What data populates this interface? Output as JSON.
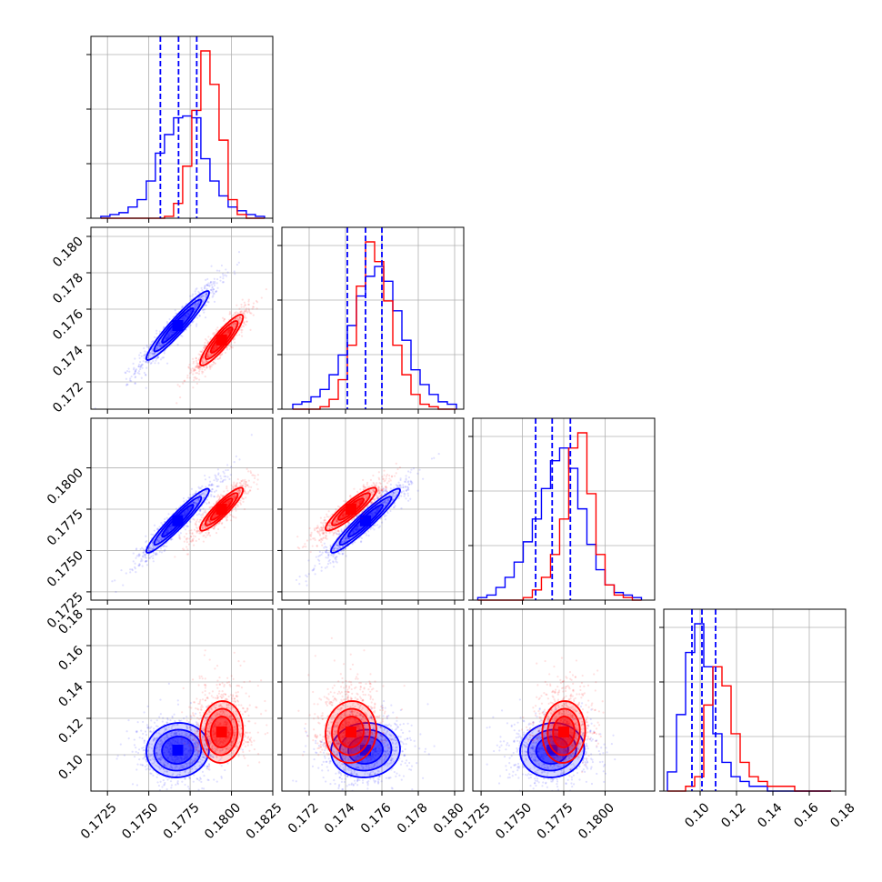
{
  "colors": {
    "blue": "#0000ff",
    "red": "#ff0000",
    "grid": "#b0b0b0",
    "axis": "#000000"
  },
  "chart_data": {
    "type": "corner",
    "grid": true,
    "dims": [
      {
        "range": [
          0.1715,
          0.1825
        ],
        "ticks": [
          0.1725,
          0.175,
          0.1775,
          0.18,
          0.1825
        ],
        "tick_labels": [
          "0.1725",
          "0.1750",
          "0.1775",
          "0.1800",
          "0.1825"
        ]
      },
      {
        "range": [
          0.1705,
          0.1805
        ],
        "ticks": [
          0.172,
          0.174,
          0.176,
          0.178,
          0.18
        ],
        "tick_labels": [
          "0.172",
          "0.174",
          "0.176",
          "0.178",
          "0.180"
        ]
      },
      {
        "range": [
          0.172,
          0.183
        ],
        "ticks": [
          0.1725,
          0.175,
          0.1775,
          0.18
        ],
        "tick_labels": [
          "0.1725",
          "0.1750",
          "0.1775",
          "0.1800"
        ]
      },
      {
        "range": [
          0.08,
          0.18
        ],
        "ticks": [
          0.1,
          0.12,
          0.14,
          0.16,
          0.18
        ],
        "tick_labels": [
          "0.10",
          "0.12",
          "0.14",
          "0.16",
          "0.18"
        ]
      }
    ],
    "quantiles": [
      [
        0.1757,
        0.1768,
        0.1779
      ],
      [
        0.1741,
        0.1751,
        0.176
      ],
      [
        0.1758,
        0.1768,
        0.1779
      ],
      [
        0.0955,
        0.101,
        0.1085
      ]
    ],
    "series": [
      {
        "color": "blue",
        "hists": [
          [
            0.1721,
            [
              1,
              2,
              3,
              6,
              10,
              20,
              35,
              45,
              54,
              55,
              54,
              32,
              20,
              12,
              6,
              4,
              2,
              1
            ]
          ],
          [
            0.1711,
            [
              2,
              3,
              5,
              8,
              14,
              22,
              34,
              46,
              54,
              58,
              52,
              40,
              28,
              16,
              10,
              6,
              3,
              2
            ]
          ],
          [
            0.1723,
            [
              1,
              2,
              5,
              9,
              15,
              23,
              32,
              44,
              55,
              60,
              52,
              36,
              22,
              12,
              6,
              3,
              2,
              1
            ]
          ],
          [
            0.082,
            [
              4,
              16,
              29,
              35,
              26,
              12,
              6,
              3,
              2,
              1,
              1,
              0,
              0,
              0,
              0,
              0,
              0,
              0
            ]
          ]
        ],
        "centers": [
          0.17675,
          0.1751,
          0.1768,
          0.1025
        ],
        "sigmas": [
          0.00095,
          0.00095,
          0.00097,
          0.0075
        ],
        "corr": [
          [
            1,
            0.95,
            0.95,
            0.05
          ],
          [
            0.95,
            1,
            0.95,
            0.05
          ],
          [
            0.95,
            0.95,
            1,
            0.05
          ],
          [
            0.05,
            0.05,
            0.05,
            1
          ]
        ]
      },
      {
        "color": "red",
        "hists": [
          [
            0.1721,
            [
              0,
              0,
              0,
              0,
              0,
              0,
              0,
              1,
              8,
              28,
              58,
              90,
              72,
              42,
              10,
              2,
              0,
              0
            ]
          ],
          [
            0.1711,
            [
              0,
              0,
              0,
              1,
              4,
              12,
              26,
              50,
              68,
              60,
              44,
              26,
              14,
              6,
              2,
              1,
              0,
              0
            ]
          ],
          [
            0.1723,
            [
              0,
              0,
              0,
              0,
              0,
              1,
              4,
              9,
              18,
              32,
              60,
              66,
              42,
              18,
              6,
              2,
              1,
              0
            ]
          ],
          [
            0.082,
            [
              0,
              0,
              1,
              3,
              18,
              26,
              22,
              12,
              6,
              3,
              2,
              1,
              1,
              1,
              0,
              0,
              0,
              0
            ]
          ]
        ],
        "centers": [
          0.1794,
          0.1743,
          0.1775,
          0.1125
        ],
        "sigmas": [
          0.00065,
          0.0007,
          0.00065,
          0.0085
        ],
        "corr": [
          [
            1,
            0.9,
            0.9,
            0.05
          ],
          [
            0.9,
            1,
            0.9,
            0.05
          ],
          [
            0.9,
            0.9,
            1,
            0.05
          ],
          [
            0.05,
            0.05,
            0.05,
            1
          ]
        ]
      }
    ]
  }
}
